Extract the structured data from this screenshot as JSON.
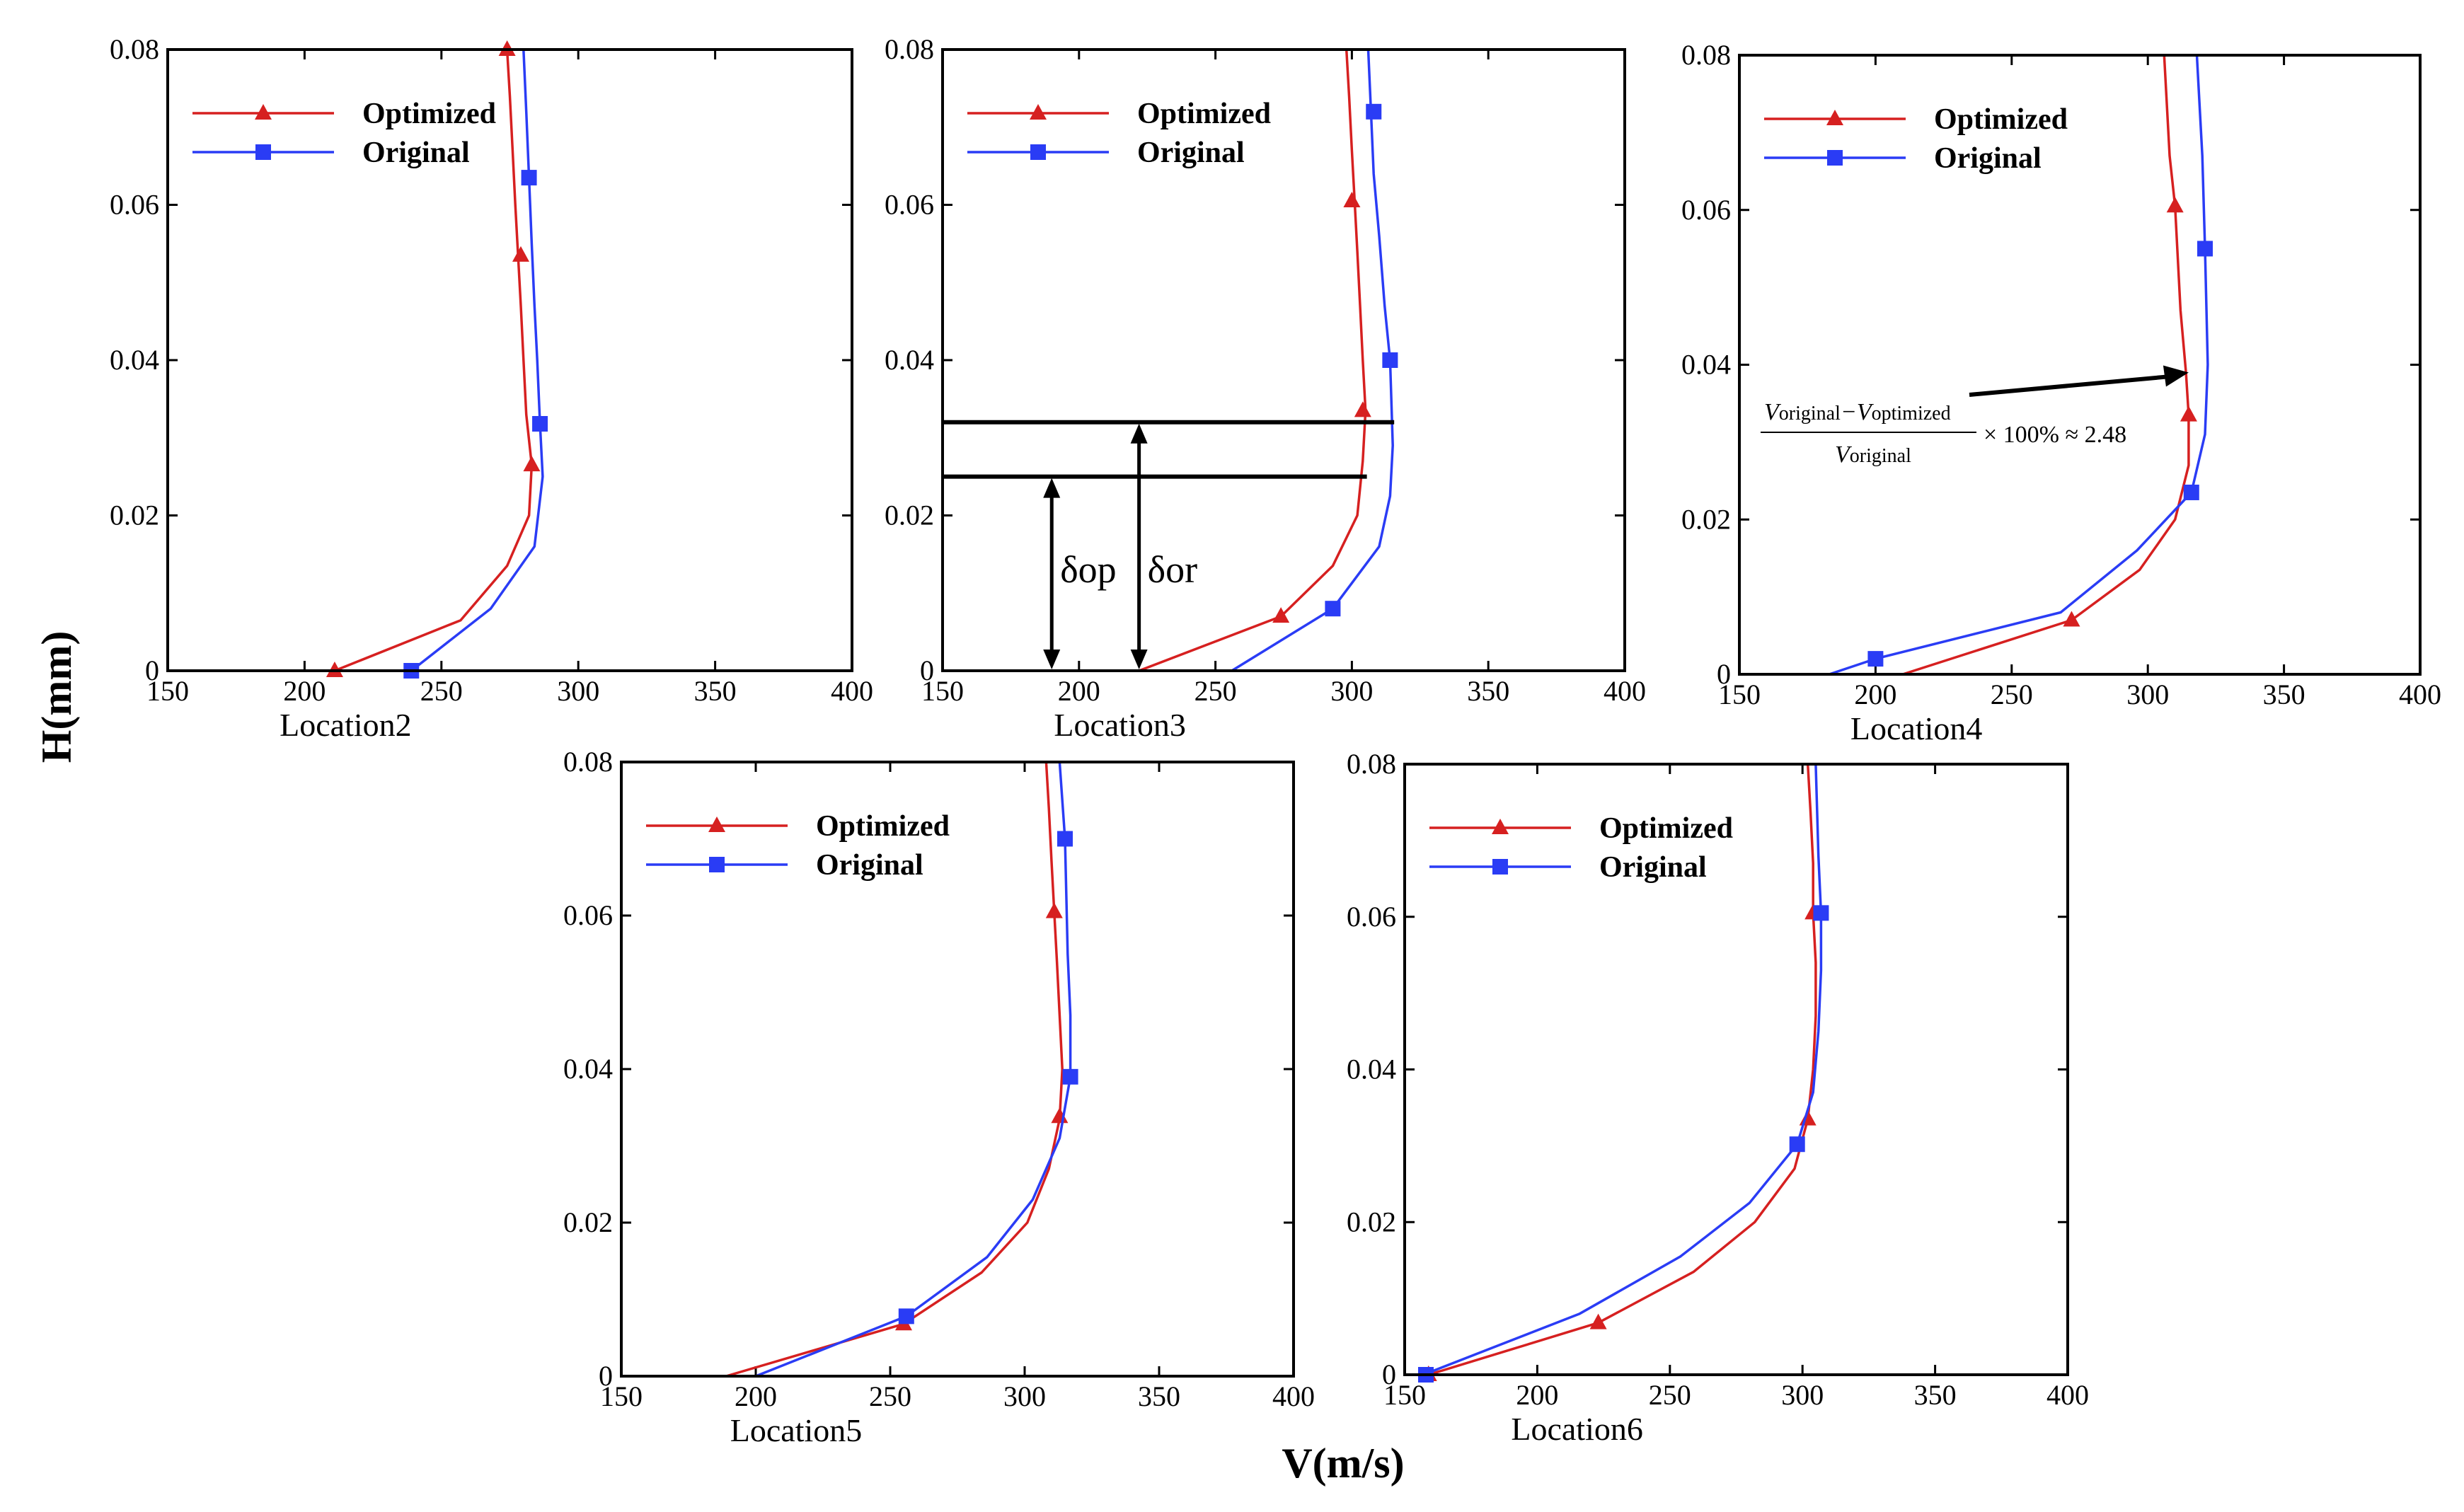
{
  "figure": {
    "ylabel": "H(mm)",
    "xlabel": "V(m/s)"
  },
  "colors": {
    "optimized": "#d62020",
    "original": "#2a3cf5"
  },
  "chart_data": [
    {
      "type": "line",
      "location": "Location2",
      "xlim": [
        150,
        400
      ],
      "ylim": [
        0,
        0.08
      ],
      "xticks": [
        "150",
        "200",
        "250",
        "300",
        "350",
        "400"
      ],
      "yticks": [
        "0",
        "0.02",
        "0.04",
        "0.06",
        "0.08"
      ],
      "legend": [
        "Optimized",
        "Original"
      ],
      "series": [
        {
          "name": "Optimized",
          "marker": "triangle",
          "line": [
            [
              211,
              0
            ],
            [
              257,
              0.0065
            ],
            [
              274,
              0.0135
            ],
            [
              282,
              0.02
            ],
            [
              283,
              0.0265
            ],
            [
              281,
              0.033
            ],
            [
              280,
              0.04
            ],
            [
              279,
              0.047
            ],
            [
              278,
              0.0535
            ],
            [
              277,
              0.06
            ],
            [
              276,
              0.067
            ],
            [
              275,
              0.074
            ],
            [
              274,
              0.08
            ]
          ],
          "markers": [
            [
              211,
              0
            ],
            [
              283,
              0.0265
            ],
            [
              279,
              0.0535
            ],
            [
              274,
              0.08
            ]
          ]
        },
        {
          "name": "Original",
          "marker": "square",
          "line": [
            [
              239,
              0
            ],
            [
              268,
              0.008
            ],
            [
              284,
              0.016
            ],
            [
              287,
              0.025
            ],
            [
              286,
              0.032
            ],
            [
              285,
              0.04
            ],
            [
              284,
              0.047
            ],
            [
              283,
              0.055
            ],
            [
              282,
              0.0635
            ],
            [
              281,
              0.072
            ],
            [
              280,
              0.08
            ]
          ],
          "markers": [
            [
              239,
              0
            ],
            [
              286,
              0.0318
            ],
            [
              282,
              0.0635
            ]
          ]
        }
      ]
    },
    {
      "type": "line",
      "location": "Location3",
      "xlim": [
        150,
        400
      ],
      "ylim": [
        0,
        0.08
      ],
      "xticks": [
        "150",
        "200",
        "250",
        "300",
        "350",
        "400"
      ],
      "yticks": [
        "0",
        "0.02",
        "0.04",
        "0.06",
        "0.08"
      ],
      "legend": [
        "Optimized",
        "Original"
      ],
      "annotation": {
        "type": "thickness",
        "delta_op": "δop",
        "delta_or": "δor",
        "h_op": 0.025,
        "h_or": 0.032,
        "x_op": 190,
        "x_or": 222
      },
      "series": [
        {
          "name": "Optimized",
          "marker": "triangle",
          "line": [
            [
              222,
              0
            ],
            [
              274,
              0.007
            ],
            [
              293,
              0.0135
            ],
            [
              302,
              0.02
            ],
            [
              304,
              0.027
            ],
            [
              305,
              0.0335
            ],
            [
              304,
              0.04
            ],
            [
              303,
              0.047
            ],
            [
              302,
              0.054
            ],
            [
              301,
              0.0605
            ],
            [
              300,
              0.067
            ],
            [
              299,
              0.074
            ],
            [
              298,
              0.08
            ]
          ],
          "markers": [
            [
              274,
              0.007
            ],
            [
              304,
              0.0335
            ],
            [
              300,
              0.0605
            ]
          ]
        },
        {
          "name": "Original",
          "marker": "square",
          "line": [
            [
              256,
              0
            ],
            [
              293,
              0.008
            ],
            [
              310,
              0.016
            ],
            [
              314,
              0.0225
            ],
            [
              315,
              0.029
            ],
            [
              314,
              0.04
            ],
            [
              312,
              0.047
            ],
            [
              310,
              0.056
            ],
            [
              308,
              0.064
            ],
            [
              307,
              0.072
            ],
            [
              306,
              0.08
            ]
          ],
          "markers": [
            [
              293,
              0.008
            ],
            [
              314,
              0.04
            ],
            [
              308,
              0.072
            ]
          ]
        }
      ]
    },
    {
      "type": "line",
      "location": "Location4",
      "xlim": [
        150,
        400
      ],
      "ylim": [
        0,
        0.08
      ],
      "xticks": [
        "150",
        "200",
        "250",
        "300",
        "350",
        "400"
      ],
      "yticks": [
        "0",
        "0.02",
        "0.04",
        "0.06",
        "0.08"
      ],
      "legend": [
        "Optimized",
        "Original"
      ],
      "annotation": {
        "type": "formula",
        "numerator_a": "V",
        "numerator_a_sub": "original",
        "minus": "−",
        "numerator_b": "V",
        "numerator_b_sub": "optimized",
        "denominator": "V",
        "denominator_sub": "original",
        "tail": "× 100% ≈ 2.48",
        "target": [
          315,
          0.039
        ]
      },
      "series": [
        {
          "name": "Optimized",
          "marker": "triangle",
          "line": [
            [
              210,
              0
            ],
            [
              272,
              0.007
            ],
            [
              297,
              0.0135
            ],
            [
              310,
              0.02
            ],
            [
              315,
              0.027
            ],
            [
              315,
              0.0335
            ],
            [
              314,
              0.039
            ],
            [
              312,
              0.047
            ],
            [
              310,
              0.0605
            ],
            [
              308,
              0.067
            ],
            [
              306,
              0.08
            ]
          ],
          "markers": [
            [
              272,
              0.007
            ],
            [
              315,
              0.0335
            ],
            [
              310,
              0.0605
            ]
          ]
        },
        {
          "name": "Original",
          "marker": "square",
          "line": [
            [
              183,
              0
            ],
            [
              200,
              0.002
            ],
            [
              268,
              0.008
            ],
            [
              296,
              0.016
            ],
            [
              316,
              0.0235
            ],
            [
              321,
              0.031
            ],
            [
              322,
              0.04
            ],
            [
              321,
              0.055
            ],
            [
              320,
              0.067
            ],
            [
              318,
              0.08
            ]
          ],
          "markers": [
            [
              200,
              0.002
            ],
            [
              316,
              0.0235
            ],
            [
              321,
              0.055
            ]
          ]
        }
      ]
    },
    {
      "type": "line",
      "location": "Location5",
      "xlim": [
        150,
        400
      ],
      "ylim": [
        0,
        0.08
      ],
      "xticks": [
        "150",
        "200",
        "250",
        "300",
        "350",
        "400"
      ],
      "yticks": [
        "0",
        "0.02",
        "0.04",
        "0.06",
        "0.08"
      ],
      "legend": [
        "Optimized",
        "Original"
      ],
      "series": [
        {
          "name": "Optimized",
          "marker": "triangle",
          "line": [
            [
              189,
              0
            ],
            [
              255,
              0.0068
            ],
            [
              284,
              0.0135
            ],
            [
              301,
              0.02
            ],
            [
              309,
              0.027
            ],
            [
              313,
              0.0335
            ],
            [
              314,
              0.04
            ],
            [
              313,
              0.047
            ],
            [
              312,
              0.054
            ],
            [
              311,
              0.0605
            ],
            [
              310,
              0.067
            ],
            [
              309,
              0.074
            ],
            [
              308,
              0.08
            ]
          ],
          "markers": [
            [
              255,
              0.0068
            ],
            [
              313,
              0.0338
            ],
            [
              311,
              0.0605
            ]
          ]
        },
        {
          "name": "Original",
          "marker": "square",
          "line": [
            [
              200,
              0
            ],
            [
              256,
              0.0078
            ],
            [
              286,
              0.0155
            ],
            [
              303,
              0.023
            ],
            [
              313,
              0.031
            ],
            [
              317,
              0.039
            ],
            [
              317,
              0.047
            ],
            [
              316,
              0.055
            ],
            [
              315,
              0.07
            ],
            [
              313,
              0.08
            ]
          ],
          "markers": [
            [
              256,
              0.0078
            ],
            [
              317,
              0.039
            ],
            [
              315,
              0.07
            ]
          ]
        }
      ]
    },
    {
      "type": "line",
      "location": "Location6",
      "xlim": [
        150,
        400
      ],
      "ylim": [
        0,
        0.08
      ],
      "xticks": [
        "150",
        "200",
        "250",
        "300",
        "350",
        "400"
      ],
      "yticks": [
        "0",
        "0.02",
        "0.04",
        "0.06",
        "0.08"
      ],
      "legend": [
        "Optimized",
        "Original"
      ],
      "series": [
        {
          "name": "Optimized",
          "marker": "triangle",
          "line": [
            [
              159,
              0
            ],
            [
              223,
              0.0068
            ],
            [
              259,
              0.0135
            ],
            [
              282,
              0.02
            ],
            [
              297,
              0.027
            ],
            [
              302,
              0.0335
            ],
            [
              304,
              0.04
            ],
            [
              305,
              0.047
            ],
            [
              305,
              0.054
            ],
            [
              304,
              0.0605
            ],
            [
              304,
              0.067
            ],
            [
              303,
              0.074
            ],
            [
              302,
              0.08
            ]
          ],
          "markers": [
            [
              159,
              0
            ],
            [
              223,
              0.0068
            ],
            [
              302,
              0.0335
            ],
            [
              304,
              0.0605
            ]
          ]
        },
        {
          "name": "Original",
          "marker": "square",
          "line": [
            [
              157,
              0
            ],
            [
              216,
              0.008
            ],
            [
              254,
              0.0155
            ],
            [
              280,
              0.0225
            ],
            [
              298,
              0.0302
            ],
            [
              304,
              0.037
            ],
            [
              306,
              0.045
            ],
            [
              307,
              0.053
            ],
            [
              307,
              0.0605
            ],
            [
              306,
              0.068
            ],
            [
              305,
              0.08
            ]
          ],
          "markers": [
            [
              158,
              0
            ],
            [
              298,
              0.0302
            ],
            [
              307,
              0.0605
            ]
          ]
        }
      ]
    }
  ]
}
